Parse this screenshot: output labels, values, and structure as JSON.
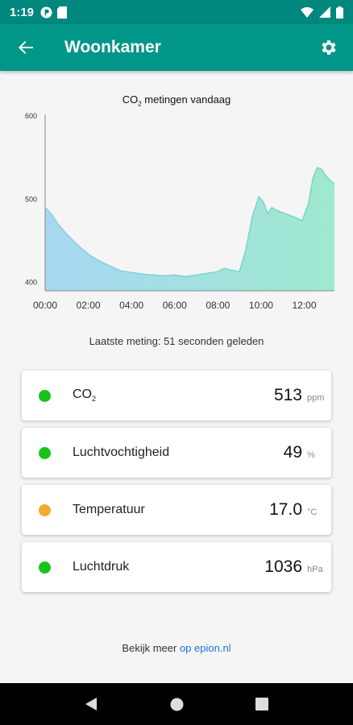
{
  "status": {
    "time": "1:19"
  },
  "appbar": {
    "title": "Woonkamer"
  },
  "chart_data": {
    "type": "area",
    "title_main": "CO",
    "title_sub": "2",
    "title_rest": " metingen vandaag",
    "ylim": [
      390,
      600
    ],
    "xlim": [
      0,
      13.4
    ],
    "y_ticks": [
      400,
      500,
      600
    ],
    "x_ticks": [
      {
        "v": 0,
        "label": "00:00"
      },
      {
        "v": 2,
        "label": "02:00"
      },
      {
        "v": 4,
        "label": "04:00"
      },
      {
        "v": 6,
        "label": "06:00"
      },
      {
        "v": 8,
        "label": "08:00"
      },
      {
        "v": 10,
        "label": "10:00"
      },
      {
        "v": 12,
        "label": "12:00"
      }
    ],
    "x": [
      0,
      0.3,
      0.6,
      1,
      1.5,
      2,
      2.5,
      3,
      3.5,
      4,
      4.5,
      5,
      5.5,
      6,
      6.5,
      7,
      7.5,
      8,
      8.3,
      8.6,
      9.0,
      9.3,
      9.6,
      9.9,
      10.1,
      10.3,
      10.5,
      10.7,
      11.0,
      11.3,
      11.6,
      11.9,
      12.2,
      12.4,
      12.6,
      12.8,
      13.0,
      13.2,
      13.4
    ],
    "y": [
      490,
      482,
      470,
      458,
      445,
      434,
      426,
      420,
      414,
      412,
      410,
      409,
      408,
      409,
      407,
      409,
      411,
      413,
      417,
      415,
      413,
      440,
      480,
      503,
      497,
      483,
      490,
      487,
      484,
      481,
      478,
      474,
      495,
      525,
      538,
      536,
      528,
      523,
      518
    ]
  },
  "last_measure": "Laatste meting: 51 seconden geleden",
  "cards": [
    {
      "label": "CO",
      "label_sub": "2",
      "value": "513",
      "unit": "ppm",
      "color": "#19c219"
    },
    {
      "label": "Luchtvochtigheid",
      "label_sub": "",
      "value": "49",
      "unit": "%",
      "color": "#19c219"
    },
    {
      "label": "Temperatuur",
      "label_sub": "",
      "value": "17.0",
      "unit": "°C",
      "color": "#f7a92f"
    },
    {
      "label": "Luchtdruk",
      "label_sub": "",
      "value": "1036",
      "unit": "hPa",
      "color": "#19c219"
    }
  ],
  "footer": {
    "text": "Bekijk meer ",
    "link": "op epion.nl"
  }
}
